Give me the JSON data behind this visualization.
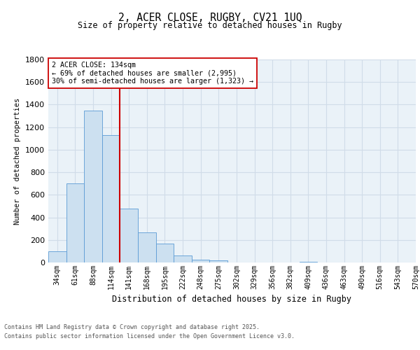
{
  "title_line1": "2, ACER CLOSE, RUGBY, CV21 1UQ",
  "title_line2": "Size of property relative to detached houses in Rugby",
  "xlabel": "Distribution of detached houses by size in Rugby",
  "ylabel": "Number of detached properties",
  "bar_values": [
    100,
    700,
    1350,
    1130,
    480,
    270,
    165,
    65,
    25,
    20,
    0,
    0,
    0,
    0,
    5,
    0,
    0,
    0,
    0,
    0
  ],
  "categories": [
    "34sqm",
    "61sqm",
    "88sqm",
    "114sqm",
    "141sqm",
    "168sqm",
    "195sqm",
    "222sqm",
    "248sqm",
    "275sqm",
    "302sqm",
    "329sqm",
    "356sqm",
    "382sqm",
    "409sqm",
    "436sqm",
    "463sqm",
    "490sqm",
    "516sqm",
    "543sqm",
    "570sqm"
  ],
  "bar_color": "#cce0f0",
  "bar_edge_color": "#5b9bd5",
  "grid_color": "#d0dce8",
  "bg_color": "#eaf2f8",
  "red_line_index": 4,
  "red_line_color": "#cc0000",
  "annotation_text": "2 ACER CLOSE: 134sqm\n← 69% of detached houses are smaller (2,995)\n30% of semi-detached houses are larger (1,323) →",
  "annotation_box_color": "#ffffff",
  "annotation_box_edge": "#cc0000",
  "ylim": [
    0,
    1800
  ],
  "yticks": [
    0,
    200,
    400,
    600,
    800,
    1000,
    1200,
    1400,
    1600,
    1800
  ],
  "footer_line1": "Contains HM Land Registry data © Crown copyright and database right 2025.",
  "footer_line2": "Contains public sector information licensed under the Open Government Licence v3.0."
}
